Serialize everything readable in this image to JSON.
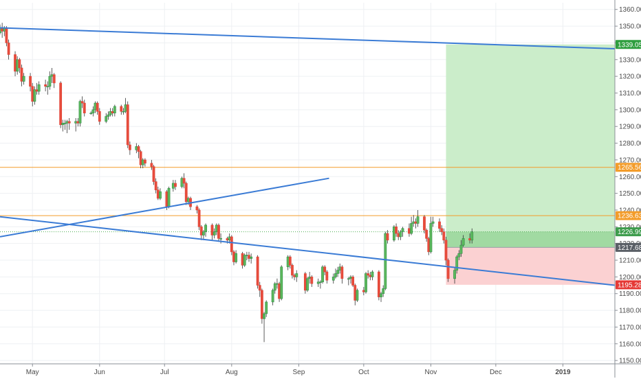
{
  "chart_data": {
    "type": "candlestick",
    "y_axis": {
      "ticks": [
        "1150.00",
        "1160.00",
        "1170.00",
        "1180.00",
        "1190.00",
        "1200.00",
        "1210.00",
        "1220.00",
        "1230.00",
        "1240.00",
        "1250.00",
        "1260.00",
        "1270.00",
        "1280.00",
        "1290.00",
        "1300.00",
        "1310.00",
        "1320.00",
        "1330.00",
        "1340.00",
        "1350.00",
        "1360.00"
      ],
      "range": [
        1148,
        1364
      ]
    },
    "x_axis": {
      "labels": [
        "May",
        "Jun",
        "Jul",
        "Aug",
        "Sep",
        "Oct",
        "Nov",
        "Dec",
        "2019"
      ],
      "range": [
        "2018-04-16",
        "2019-01-25"
      ]
    },
    "grid": true,
    "price_tags": [
      {
        "value": 1339.05,
        "label": "1339.05",
        "color": "#2e9e3e"
      },
      {
        "value": 1265.56,
        "label": "1265.56",
        "color": "#f39c2a"
      },
      {
        "value": 1236.63,
        "label": "1236.63",
        "color": "#f39c2a"
      },
      {
        "value": 1226.99,
        "label": "1226.99",
        "color": "#3d9c4c"
      },
      {
        "value": 1217.68,
        "label": "1217.68",
        "color": "#5a5f66"
      },
      {
        "value": 1195.28,
        "label": "1195.28",
        "color": "#e53935"
      }
    ],
    "horizontal_levels": [
      {
        "value": 1265.56,
        "color": "#f39c2a"
      },
      {
        "value": 1236.63,
        "color": "#f39c2a"
      }
    ],
    "trendlines": [
      {
        "start": [
          "2018-04-16",
          1349
        ],
        "end": [
          "2019-01-25",
          1336.5
        ],
        "color": "#3a7bd5"
      },
      {
        "start": [
          "2018-04-16",
          1224
        ],
        "end": [
          "2018-09-15",
          1259
        ],
        "color": "#3a7bd5"
      },
      {
        "start": [
          "2018-04-16",
          1236
        ],
        "end": [
          "2019-01-25",
          1195
        ],
        "color": "#3a7bd5"
      }
    ],
    "position_tool": {
      "start": "2018-11-08",
      "end": "2019-01-25",
      "entry": 1217.68,
      "target": 1339.05,
      "stop": 1195.28,
      "current": 1226.99
    },
    "candles": [
      [
        "2018-04-16",
        1346,
        1349,
        1345,
        1351
      ],
      [
        "2018-04-17",
        1349,
        1347,
        1343,
        1352
      ],
      [
        "2018-04-18",
        1347,
        1349,
        1344,
        1350
      ],
      [
        "2018-04-19",
        1349,
        1340,
        1338,
        1350
      ],
      [
        "2018-04-20",
        1340,
        1333,
        1330,
        1342
      ],
      [
        "2018-04-23",
        1333,
        1323,
        1320,
        1335
      ],
      [
        "2018-04-24",
        1323,
        1330,
        1321,
        1332
      ],
      [
        "2018-04-25",
        1330,
        1325,
        1322,
        1331
      ],
      [
        "2018-04-26",
        1325,
        1317,
        1314,
        1327
      ],
      [
        "2018-04-27",
        1317,
        1320,
        1315,
        1322
      ],
      [
        "2018-04-30",
        1320,
        1314,
        1311,
        1322
      ],
      [
        "2018-05-01",
        1314,
        1305,
        1302,
        1316
      ],
      [
        "2018-05-02",
        1305,
        1312,
        1303,
        1314
      ],
      [
        "2018-05-03",
        1312,
        1311,
        1309,
        1316
      ],
      [
        "2018-05-04",
        1311,
        1315,
        1309,
        1317
      ],
      [
        "2018-05-07",
        1315,
        1314,
        1311,
        1318
      ],
      [
        "2018-05-08",
        1314,
        1314,
        1309,
        1317
      ],
      [
        "2018-05-09",
        1314,
        1320,
        1312,
        1323
      ],
      [
        "2018-05-10",
        1320,
        1321,
        1316,
        1325
      ],
      [
        "2018-05-11",
        1321,
        1316,
        1313,
        1322
      ],
      [
        "2018-05-14",
        1316,
        1291,
        1289,
        1317
      ],
      [
        "2018-05-15",
        1291,
        1292,
        1287,
        1294
      ],
      [
        "2018-05-16",
        1292,
        1292,
        1288,
        1294
      ],
      [
        "2018-05-17",
        1292,
        1293,
        1286,
        1294
      ],
      [
        "2018-05-18",
        1293,
        1292,
        1288,
        1295
      ],
      [
        "2018-05-21",
        1292,
        1293,
        1287,
        1295
      ],
      [
        "2018-05-22",
        1293,
        1292,
        1290,
        1295
      ],
      [
        "2018-05-23",
        1292,
        1305,
        1290,
        1306
      ],
      [
        "2018-05-24",
        1305,
        1304,
        1301,
        1308
      ],
      [
        "2018-05-25",
        1304,
        1298,
        1296,
        1306
      ],
      [
        "2018-05-28",
        1298,
        1298,
        1297,
        1299
      ],
      [
        "2018-05-29",
        1298,
        1300,
        1296,
        1302
      ],
      [
        "2018-05-30",
        1300,
        1304,
        1298,
        1305
      ],
      [
        "2018-05-31",
        1304,
        1299,
        1297,
        1305
      ],
      [
        "2018-06-01",
        1299,
        1293,
        1291,
        1301
      ],
      [
        "2018-06-04",
        1293,
        1296,
        1292,
        1298
      ],
      [
        "2018-06-05",
        1296,
        1297,
        1294,
        1299
      ],
      [
        "2018-06-06",
        1297,
        1299,
        1296,
        1301
      ],
      [
        "2018-06-07",
        1299,
        1298,
        1296,
        1301
      ],
      [
        "2018-06-08",
        1298,
        1302,
        1296,
        1303
      ],
      [
        "2018-06-11",
        1302,
        1299,
        1297,
        1303
      ],
      [
        "2018-06-12",
        1299,
        1299,
        1297,
        1301
      ],
      [
        "2018-06-13",
        1299,
        1303,
        1298,
        1307
      ],
      [
        "2018-06-14",
        1303,
        1279,
        1277,
        1305
      ],
      [
        "2018-06-15",
        1279,
        1276,
        1273,
        1281
      ],
      [
        "2018-06-18",
        1276,
        1278,
        1274,
        1280
      ],
      [
        "2018-06-19",
        1278,
        1275,
        1271,
        1279
      ],
      [
        "2018-06-20",
        1275,
        1267,
        1265,
        1276
      ],
      [
        "2018-06-21",
        1267,
        1270,
        1265,
        1271
      ],
      [
        "2018-06-22",
        1270,
        1268,
        1266,
        1271
      ],
      [
        "2018-06-25",
        1268,
        1266,
        1264,
        1270
      ],
      [
        "2018-06-26",
        1266,
        1257,
        1255,
        1267
      ],
      [
        "2018-06-27",
        1257,
        1252,
        1250,
        1259
      ],
      [
        "2018-06-28",
        1252,
        1247,
        1246,
        1254
      ],
      [
        "2018-06-29",
        1247,
        1251,
        1246,
        1253
      ],
      [
        "2018-07-02",
        1251,
        1242,
        1240,
        1252
      ],
      [
        "2018-07-03",
        1242,
        1253,
        1241,
        1254
      ],
      [
        "2018-07-05",
        1253,
        1256,
        1251,
        1258
      ],
      [
        "2018-07-06",
        1256,
        1254,
        1252,
        1258
      ],
      [
        "2018-07-09",
        1254,
        1259,
        1253,
        1260
      ],
      [
        "2018-07-10",
        1259,
        1256,
        1253,
        1262
      ],
      [
        "2018-07-11",
        1256,
        1245,
        1243,
        1257
      ],
      [
        "2018-07-12",
        1245,
        1247,
        1243,
        1248
      ],
      [
        "2018-07-13",
        1247,
        1242,
        1240,
        1248
      ],
      [
        "2018-07-16",
        1242,
        1240,
        1238,
        1243
      ],
      [
        "2018-07-17",
        1240,
        1230,
        1228,
        1241
      ],
      [
        "2018-07-18",
        1230,
        1225,
        1222,
        1231
      ],
      [
        "2018-07-19",
        1225,
        1227,
        1222,
        1228
      ],
      [
        "2018-07-20",
        1227,
        1231,
        1224,
        1232
      ],
      [
        "2018-07-23",
        1231,
        1225,
        1222,
        1232
      ],
      [
        "2018-07-24",
        1225,
        1227,
        1223,
        1229
      ],
      [
        "2018-07-25",
        1227,
        1231,
        1225,
        1232
      ],
      [
        "2018-07-26",
        1231,
        1223,
        1221,
        1232
      ],
      [
        "2018-07-27",
        1223,
        1223,
        1220,
        1226
      ],
      [
        "2018-07-30",
        1223,
        1222,
        1220,
        1224
      ],
      [
        "2018-07-31",
        1222,
        1224,
        1220,
        1226
      ],
      [
        "2018-08-01",
        1224,
        1215,
        1213,
        1225
      ],
      [
        "2018-08-02",
        1215,
        1209,
        1207,
        1216
      ],
      [
        "2018-08-03",
        1209,
        1214,
        1208,
        1216
      ],
      [
        "2018-08-06",
        1214,
        1207,
        1205,
        1215
      ],
      [
        "2018-08-07",
        1207,
        1213,
        1206,
        1214
      ],
      [
        "2018-08-08",
        1213,
        1213,
        1210,
        1215
      ],
      [
        "2018-08-09",
        1213,
        1211,
        1209,
        1215
      ],
      [
        "2018-08-10",
        1211,
        1212,
        1208,
        1214
      ],
      [
        "2018-08-13",
        1212,
        1195,
        1193,
        1213
      ],
      [
        "2018-08-14",
        1195,
        1192,
        1188,
        1197
      ],
      [
        "2018-08-15",
        1192,
        1175,
        1172,
        1193
      ],
      [
        "2018-08-16",
        1175,
        1178,
        1161,
        1179
      ],
      [
        "2018-08-17",
        1178,
        1185,
        1176,
        1186
      ],
      [
        "2018-08-20",
        1185,
        1192,
        1183,
        1193
      ],
      [
        "2018-08-21",
        1192,
        1196,
        1190,
        1197
      ],
      [
        "2018-08-22",
        1196,
        1196,
        1193,
        1199
      ],
      [
        "2018-08-23",
        1196,
        1187,
        1185,
        1197
      ],
      [
        "2018-08-24",
        1187,
        1206,
        1186,
        1207
      ],
      [
        "2018-08-27",
        1206,
        1212,
        1204,
        1213
      ],
      [
        "2018-08-28",
        1212,
        1207,
        1205,
        1213
      ],
      [
        "2018-08-29",
        1207,
        1201,
        1199,
        1208
      ],
      [
        "2018-08-30",
        1201,
        1200,
        1198,
        1202
      ],
      [
        "2018-08-31",
        1200,
        1202,
        1197,
        1204
      ],
      [
        "2018-09-04",
        1202,
        1192,
        1190,
        1203
      ],
      [
        "2018-09-05",
        1192,
        1199,
        1191,
        1200
      ],
      [
        "2018-09-06",
        1199,
        1200,
        1196,
        1203
      ],
      [
        "2018-09-07",
        1200,
        1196,
        1194,
        1201
      ],
      [
        "2018-09-10",
        1196,
        1197,
        1194,
        1199
      ],
      [
        "2018-09-11",
        1197,
        1197,
        1193,
        1198
      ],
      [
        "2018-09-12",
        1197,
        1206,
        1196,
        1207
      ],
      [
        "2018-09-13",
        1206,
        1203,
        1201,
        1207
      ],
      [
        "2018-09-14",
        1203,
        1198,
        1196,
        1204
      ],
      [
        "2018-09-17",
        1198,
        1200,
        1196,
        1202
      ],
      [
        "2018-09-18",
        1200,
        1202,
        1199,
        1205
      ],
      [
        "2018-09-19",
        1202,
        1204,
        1200,
        1206
      ],
      [
        "2018-09-20",
        1204,
        1206,
        1202,
        1208
      ],
      [
        "2018-09-21",
        1206,
        1199,
        1196,
        1207
      ],
      [
        "2018-09-24",
        1199,
        1199,
        1195,
        1200
      ],
      [
        "2018-09-25",
        1199,
        1200,
        1196,
        1201
      ],
      [
        "2018-09-26",
        1200,
        1195,
        1194,
        1201
      ],
      [
        "2018-09-27",
        1195,
        1186,
        1183,
        1196
      ],
      [
        "2018-09-28",
        1186,
        1192,
        1185,
        1193
      ],
      [
        "2018-10-01",
        1192,
        1191,
        1189,
        1194
      ],
      [
        "2018-10-02",
        1191,
        1202,
        1190,
        1203
      ],
      [
        "2018-10-03",
        1202,
        1201,
        1199,
        1204
      ],
      [
        "2018-10-04",
        1201,
        1200,
        1198,
        1203
      ],
      [
        "2018-10-05",
        1200,
        1203,
        1198,
        1204
      ],
      [
        "2018-10-08",
        1203,
        1188,
        1186,
        1204
      ],
      [
        "2018-10-09",
        1188,
        1190,
        1185,
        1191
      ],
      [
        "2018-10-10",
        1190,
        1193,
        1188,
        1195
      ],
      [
        "2018-10-11",
        1193,
        1226,
        1192,
        1227
      ],
      [
        "2018-10-12",
        1226,
        1222,
        1220,
        1228
      ],
      [
        "2018-10-15",
        1222,
        1230,
        1221,
        1231
      ],
      [
        "2018-10-16",
        1230,
        1226,
        1224,
        1232
      ],
      [
        "2018-10-17",
        1226,
        1224,
        1222,
        1228
      ],
      [
        "2018-10-18",
        1224,
        1227,
        1222,
        1228
      ],
      [
        "2018-10-19",
        1227,
        1229,
        1224,
        1230
      ],
      [
        "2018-10-22",
        1229,
        1226,
        1224,
        1232
      ],
      [
        "2018-10-23",
        1226,
        1232,
        1225,
        1236
      ],
      [
        "2018-10-24",
        1232,
        1233,
        1230,
        1237
      ],
      [
        "2018-10-25",
        1233,
        1232,
        1229,
        1235
      ],
      [
        "2018-10-26",
        1232,
        1236,
        1230,
        1240
      ],
      [
        "2018-10-29",
        1236,
        1228,
        1226,
        1237
      ],
      [
        "2018-10-30",
        1228,
        1223,
        1221,
        1229
      ],
      [
        "2018-10-31",
        1223,
        1215,
        1213,
        1224
      ],
      [
        "2018-11-01",
        1215,
        1232,
        1214,
        1236
      ],
      [
        "2018-11-02",
        1232,
        1233,
        1230,
        1236
      ],
      [
        "2018-11-05",
        1233,
        1229,
        1227,
        1235
      ],
      [
        "2018-11-06",
        1229,
        1227,
        1225,
        1231
      ],
      [
        "2018-11-07",
        1227,
        1222,
        1220,
        1229
      ],
      [
        "2018-11-08",
        1222,
        1210,
        1207,
        1224
      ],
      [
        "2018-11-09",
        1210,
        1199,
        1197,
        1211
      ],
      [
        "2018-11-12",
        1199,
        1204,
        1196,
        1206
      ],
      [
        "2018-11-13",
        1204,
        1212,
        1202,
        1213
      ],
      [
        "2018-11-14",
        1212,
        1214,
        1210,
        1216
      ],
      [
        "2018-11-15",
        1214,
        1219,
        1212,
        1222
      ],
      [
        "2018-11-16",
        1219,
        1223,
        1218,
        1225
      ],
      [
        "2018-11-19",
        1223,
        1222,
        1220,
        1226
      ],
      [
        "2018-11-20",
        1222,
        1227,
        1220,
        1229
      ]
    ]
  }
}
